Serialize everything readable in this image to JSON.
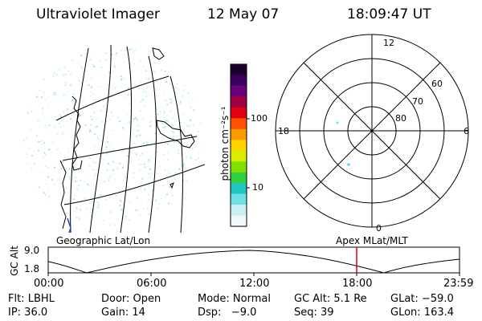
{
  "header": {
    "instrument": "Ultraviolet Imager",
    "date": "12 May 07",
    "time": "18:09:47 UT"
  },
  "panels": {
    "left_caption": "Geographic Lat/Lon",
    "right_caption": "Apex MLat/MLT"
  },
  "colorbar": {
    "unit_label": "photon cm⁻²s⁻¹",
    "tick_100": "100",
    "tick_10": "10",
    "colors_top_to_bottom": [
      "#1a0030",
      "#3a0060",
      "#6a0080",
      "#a00040",
      "#e00010",
      "#ff5000",
      "#ff9900",
      "#ffd200",
      "#d8f000",
      "#80e000",
      "#30d040",
      "#20c8c0",
      "#70e0e8",
      "#c8f0f4",
      "#f0f8fa"
    ]
  },
  "polar": {
    "mlt_top": "12",
    "mlt_left": "18",
    "mlt_right": "6",
    "mlt_bottom": "0",
    "lat_60": "60",
    "lat_70": "70",
    "lat_80": "80"
  },
  "altitude_plot": {
    "ylabel": "GC Alt",
    "y_max": "9.0",
    "y_min": "1.8",
    "x_ticks": [
      "00:00",
      "06:00",
      "12:00",
      "18:00",
      "23:59"
    ],
    "marker_color": "#e00000"
  },
  "status": {
    "flt": "Flt: LBHL",
    "door": "Door: Open",
    "mode": "Mode: Normal",
    "gc_alt": "GC Alt: 5.1 Re",
    "glat": "GLat: −59.0",
    "ip": "IP: 36.0",
    "gain": "Gain: 14",
    "dsp": "Dsp:   −9.0",
    "seq": "Seq: 39",
    "glon": "GLon: 163.4"
  }
}
